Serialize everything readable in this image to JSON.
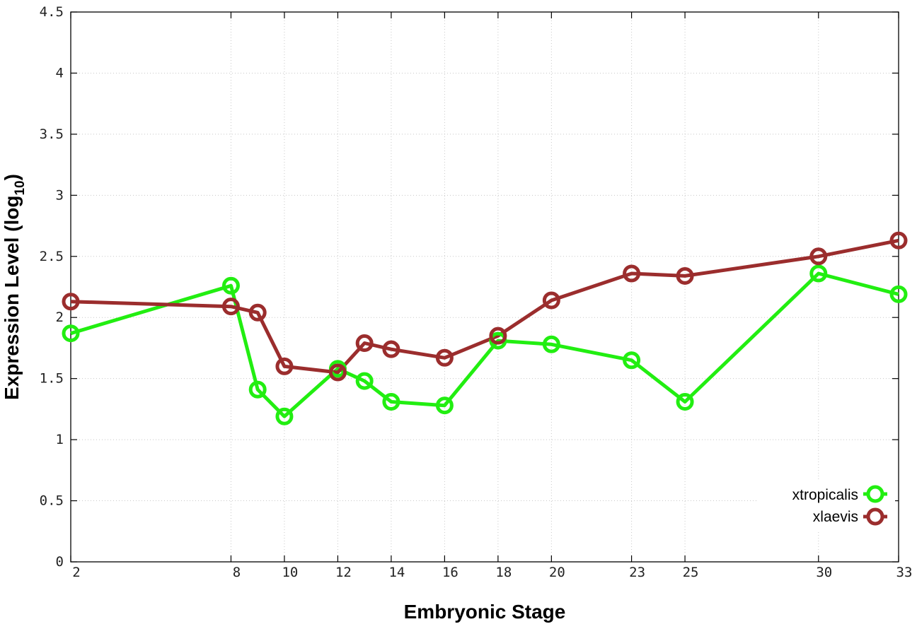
{
  "chart_data": {
    "type": "line",
    "xlabel": "Embryonic Stage",
    "ylabel_main": "Expression Level (log",
    "ylabel_sub": "10",
    "ylabel_close": ")",
    "xlim": [
      2,
      33
    ],
    "ylim": [
      0,
      4.5
    ],
    "x_ticks": [
      {
        "value": 2,
        "label": "2"
      },
      {
        "value": 8,
        "label": "8"
      },
      {
        "value": 10,
        "label": "10"
      },
      {
        "value": 12,
        "label": "12"
      },
      {
        "value": 14,
        "label": "14"
      },
      {
        "value": 16,
        "label": "16"
      },
      {
        "value": 18,
        "label": "18"
      },
      {
        "value": 20,
        "label": "20"
      },
      {
        "value": 23,
        "label": "23"
      },
      {
        "value": 25,
        "label": "25"
      },
      {
        "value": 30,
        "label": "30"
      },
      {
        "value": 33,
        "label": "33"
      }
    ],
    "y_ticks": [
      {
        "value": 0,
        "label": "0"
      },
      {
        "value": 0.5,
        "label": "0.5"
      },
      {
        "value": 1,
        "label": "1"
      },
      {
        "value": 1.5,
        "label": "1.5"
      },
      {
        "value": 2,
        "label": "2"
      },
      {
        "value": 2.5,
        "label": "2.5"
      },
      {
        "value": 3,
        "label": "3"
      },
      {
        "value": 3.5,
        "label": "3.5"
      },
      {
        "value": 4,
        "label": "4"
      },
      {
        "value": 4.5,
        "label": "4.5"
      }
    ],
    "grid": true,
    "legend_position": "bottom-right",
    "x": [
      2,
      8,
      9,
      10,
      12,
      13,
      14,
      16,
      18,
      20,
      23,
      25,
      30,
      33
    ],
    "series": [
      {
        "name": "xtropicalis",
        "color": "#22ee11",
        "values": [
          1.87,
          2.26,
          1.41,
          1.19,
          1.58,
          1.48,
          1.31,
          1.28,
          1.81,
          1.78,
          1.65,
          1.31,
          2.36,
          2.19
        ]
      },
      {
        "name": "xlaevis",
        "color": "#9b2d2d",
        "values": [
          2.13,
          2.09,
          2.04,
          1.6,
          1.55,
          1.79,
          1.74,
          1.67,
          1.85,
          2.14,
          2.36,
          2.34,
          2.5,
          2.63
        ]
      }
    ]
  }
}
